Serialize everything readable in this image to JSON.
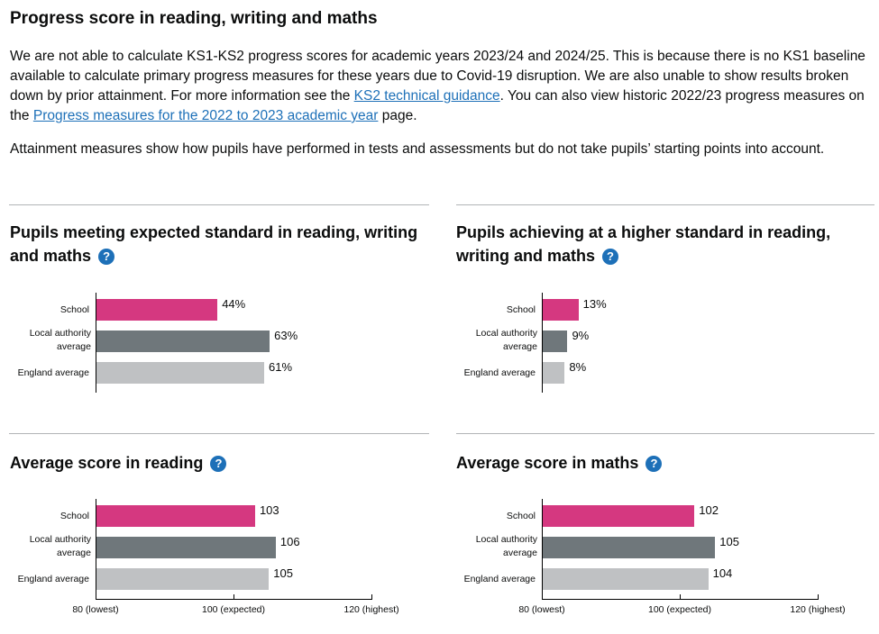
{
  "heading": "Progress score in reading, writing and maths",
  "intro": {
    "p1_a": "We are not able to calculate KS1-KS2 progress scores for academic years 2023/24 and 2024/25. This is because there is no KS1 baseline available to calculate primary progress measures for these years due to Covid-19 disruption. We are also unable to show results broken down by prior attainment. For more information see the ",
    "link1": "KS2 technical guidance",
    "p1_b": ". You can also view historic 2022/23 progress measures on the ",
    "link2": "Progress measures for the 2022 to 2023 academic year",
    "p1_c": " page.",
    "p2": "Attainment measures show how pupils have performed in tests and assessments but do not take pupils’ starting points into account."
  },
  "help_icon": "?",
  "colors": {
    "school": "#d53880",
    "local_authority": "#6f777b",
    "england": "#bfc1c3"
  },
  "chart_data": [
    {
      "type": "bar",
      "title": "Pupils meeting expected standard in reading, writing and maths",
      "categories": [
        "School",
        "Local authority average",
        "England average"
      ],
      "values": [
        44,
        63,
        61
      ],
      "labels": [
        "44%",
        "63%",
        "61%"
      ],
      "xlim": [
        0,
        100
      ]
    },
    {
      "type": "bar",
      "title": "Pupils achieving at a higher standard in reading, writing and maths",
      "categories": [
        "School",
        "Local authority average",
        "England average"
      ],
      "values": [
        13,
        9,
        8
      ],
      "labels": [
        "13%",
        "9%",
        "8%"
      ],
      "xlim": [
        0,
        100
      ]
    },
    {
      "type": "bar",
      "title": "Average score in reading",
      "categories": [
        "School",
        "Local authority average",
        "England average"
      ],
      "values": [
        103,
        106,
        105
      ],
      "labels": [
        "103",
        "106",
        "105"
      ],
      "xlim": [
        80,
        120
      ],
      "ticks": [
        "80 (lowest)",
        "100 (expected)",
        "120 (highest)"
      ]
    },
    {
      "type": "bar",
      "title": "Average score in maths",
      "categories": [
        "School",
        "Local authority average",
        "England average"
      ],
      "values": [
        102,
        105,
        104
      ],
      "labels": [
        "102",
        "105",
        "104"
      ],
      "xlim": [
        80,
        120
      ],
      "ticks": [
        "80 (lowest)",
        "100 (expected)",
        "120 (highest)"
      ]
    }
  ]
}
